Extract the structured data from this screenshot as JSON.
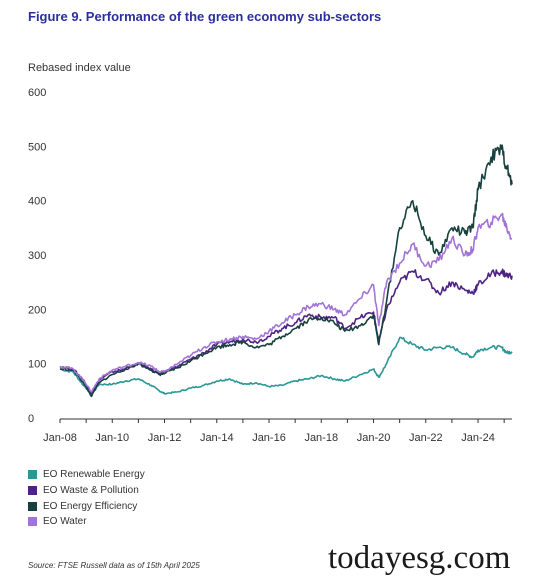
{
  "figure_title": "Figure 9. Performance of the green economy sub-sectors",
  "source": "Source: FTSE Russell data as of 15th April 2025",
  "watermark": "todayesg.com",
  "chart_data": {
    "type": "line",
    "title": "Figure 9. Performance of the green economy sub-sectors",
    "xlabel": "",
    "ylabel": "Rebased index value",
    "xlim": [
      2008.0,
      2025.3
    ],
    "ylim": [
      0,
      600
    ],
    "yticks": [
      0,
      100,
      200,
      300,
      400,
      500,
      600
    ],
    "xticks": [
      {
        "label": "Jan-08",
        "x": 2008
      },
      {
        "label": "Jan-10",
        "x": 2010
      },
      {
        "label": "Jan-12",
        "x": 2012
      },
      {
        "label": "Jan-14",
        "x": 2014
      },
      {
        "label": "Jan-16",
        "x": 2016
      },
      {
        "label": "Jan-18",
        "x": 2018
      },
      {
        "label": "Jan-20",
        "x": 2020
      },
      {
        "label": "Jan-22",
        "x": 2022
      },
      {
        "label": "Jan-24",
        "x": 2024
      }
    ],
    "grid": false,
    "legend_position": "bottom-left",
    "x": [
      2008.0,
      2008.5,
      2008.9,
      2009.2,
      2009.5,
      2010.0,
      2010.5,
      2011.0,
      2011.5,
      2011.8,
      2012.0,
      2012.5,
      2013.0,
      2013.5,
      2014.0,
      2014.5,
      2015.0,
      2015.5,
      2016.0,
      2016.5,
      2017.0,
      2017.5,
      2018.0,
      2018.5,
      2018.9,
      2019.5,
      2020.0,
      2020.2,
      2020.5,
      2021.0,
      2021.5,
      2022.0,
      2022.5,
      2023.0,
      2023.5,
      2023.8,
      2024.0,
      2024.5,
      2024.9,
      2025.1,
      2025.3
    ],
    "series": [
      {
        "name": "EO Renewable Energy",
        "color": "#2a9896",
        "values": [
          90,
          85,
          60,
          45,
          62,
          62,
          68,
          72,
          60,
          50,
          45,
          48,
          55,
          60,
          68,
          72,
          62,
          65,
          58,
          60,
          68,
          72,
          78,
          72,
          68,
          80,
          90,
          75,
          100,
          148,
          135,
          125,
          130,
          130,
          118,
          112,
          125,
          130,
          130,
          120,
          122
        ]
      },
      {
        "name": "EO Waste & Pollution",
        "color": "#4f2385",
        "values": [
          95,
          90,
          70,
          45,
          70,
          85,
          90,
          100,
          90,
          82,
          85,
          95,
          108,
          120,
          135,
          140,
          145,
          140,
          150,
          165,
          175,
          190,
          185,
          185,
          165,
          185,
          195,
          140,
          200,
          250,
          270,
          255,
          230,
          250,
          235,
          230,
          245,
          265,
          270,
          262,
          262
        ]
      },
      {
        "name": "EO Energy Efficiency",
        "color": "#17413e",
        "values": [
          90,
          88,
          65,
          40,
          65,
          80,
          90,
          100,
          88,
          80,
          82,
          92,
          105,
          118,
          130,
          135,
          140,
          130,
          135,
          150,
          165,
          180,
          185,
          175,
          160,
          170,
          190,
          135,
          215,
          350,
          400,
          335,
          300,
          350,
          340,
          350,
          420,
          480,
          495,
          460,
          430
        ]
      },
      {
        "name": "EO Water",
        "color": "#a374d7",
        "values": [
          95,
          90,
          70,
          48,
          72,
          88,
          95,
          102,
          95,
          85,
          85,
          100,
          115,
          130,
          140,
          145,
          150,
          145,
          160,
          175,
          190,
          205,
          210,
          200,
          190,
          220,
          245,
          170,
          250,
          285,
          320,
          280,
          290,
          330,
          300,
          310,
          350,
          360,
          375,
          350,
          330
        ]
      }
    ]
  }
}
